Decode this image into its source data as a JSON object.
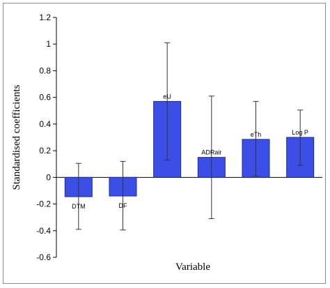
{
  "chart_data": {
    "type": "bar",
    "xlabel": "Variable",
    "ylabel": "Standardised coefficients",
    "ylim": [
      -0.6,
      1.2
    ],
    "yticks": [
      -0.6,
      -0.4,
      -0.2,
      0,
      0.2,
      0.4,
      0.6,
      0.8,
      1,
      1.2
    ],
    "categories": [
      "DTM",
      "DF",
      "eU",
      "ADRair",
      "eTh",
      "Log P"
    ],
    "values": [
      -0.145,
      -0.14,
      0.57,
      0.15,
      0.285,
      0.3
    ],
    "error_low": [
      -0.39,
      -0.395,
      0.13,
      -0.31,
      0.01,
      0.09
    ],
    "error_high": [
      0.105,
      0.12,
      1.01,
      0.61,
      0.57,
      0.505
    ],
    "bar_color": "#3b4fe6",
    "bar_edge_color": "#1b2a9e",
    "grid": false,
    "legend": "none"
  }
}
